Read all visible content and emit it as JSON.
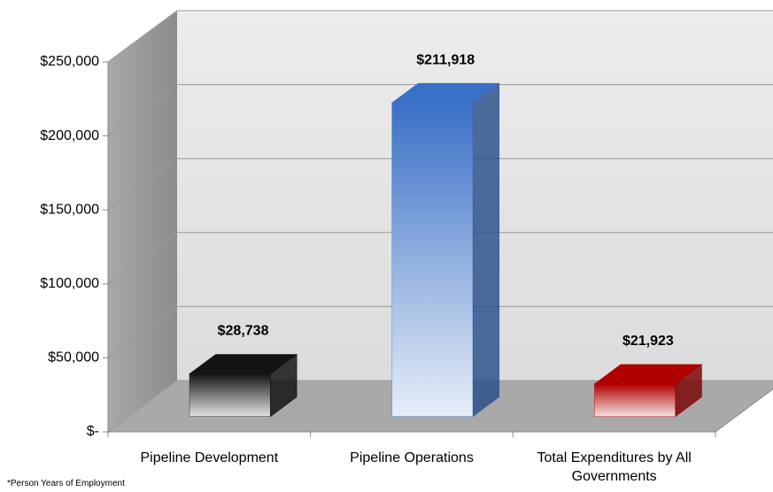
{
  "chart_data": {
    "type": "bar3d",
    "categories": [
      "Pipeline Development",
      "Pipeline Operations",
      "Total Expenditures by All Governments"
    ],
    "values": [
      28738,
      211918,
      21923
    ],
    "value_labels": [
      "$28,738",
      "$211,918",
      "$21,923"
    ],
    "colors": [
      "#141414",
      "#3a70c6",
      "#b00000"
    ],
    "ylim": [
      0,
      250000
    ],
    "yticks": [
      {
        "value": 0,
        "label": "$-"
      },
      {
        "value": 50000,
        "label": "$50,000"
      },
      {
        "value": 100000,
        "label": "$100,000"
      },
      {
        "value": 150000,
        "label": "$150,000"
      },
      {
        "value": 200000,
        "label": "$200,000"
      },
      {
        "value": 250000,
        "label": "$250,000"
      }
    ],
    "grid": true,
    "footnote": "*Person Years of Employment"
  }
}
